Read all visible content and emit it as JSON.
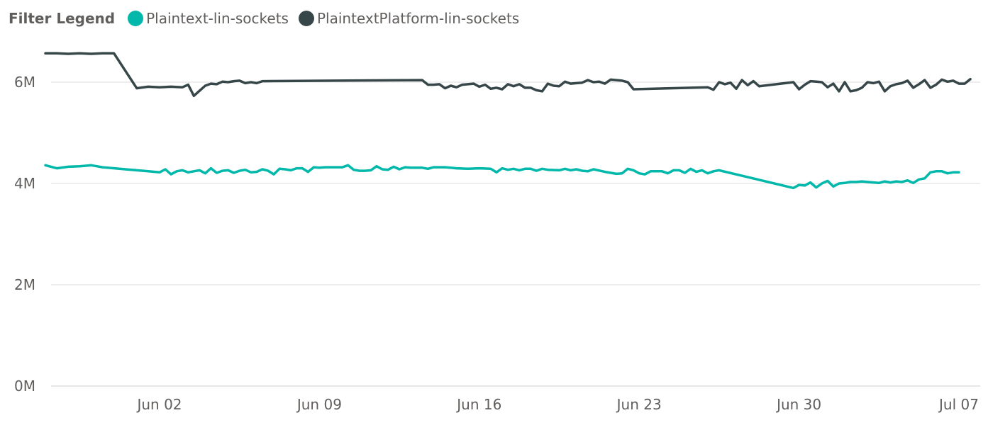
{
  "legend": {
    "title": "Filter Legend",
    "items": [
      {
        "label": "Plaintext-lin-sockets",
        "color": "#01b8aa"
      },
      {
        "label": "PlaintextPlatform-lin-sockets",
        "color": "#374649"
      }
    ]
  },
  "chart_data": {
    "type": "line",
    "title": "",
    "xlabel": "",
    "ylabel": "",
    "ylim": [
      0,
      6000000
    ],
    "xlim": [
      "2019-05-28",
      "2019-07-07"
    ],
    "grid": true,
    "legend_position": "top-left",
    "y_ticks": [
      {
        "value": 0,
        "label": "0M"
      },
      {
        "value": 2000000,
        "label": "2M"
      },
      {
        "value": 4000000,
        "label": "4M"
      },
      {
        "value": 6000000,
        "label": "6M"
      }
    ],
    "x_ticks": [
      {
        "value": "2019-06-02",
        "label": "Jun 02"
      },
      {
        "value": "2019-06-09",
        "label": "Jun 09"
      },
      {
        "value": "2019-06-16",
        "label": "Jun 16"
      },
      {
        "value": "2019-06-23",
        "label": "Jun 23"
      },
      {
        "value": "2019-06-30",
        "label": "Jun 30"
      },
      {
        "value": "2019-07-07",
        "label": "Jul 07"
      }
    ],
    "series": [
      {
        "name": "Plaintext-lin-sockets",
        "color": "#01b8aa",
        "points": [
          [
            "2019-05-28T00:00",
            4360000.0
          ],
          [
            "2019-05-28T12:00",
            4300000.0
          ],
          [
            "2019-05-29T00:00",
            4330000.0
          ],
          [
            "2019-05-29T12:00",
            4340000.0
          ],
          [
            "2019-05-30T00:00",
            4360000.0
          ],
          [
            "2019-05-30T06:00",
            4340000.0
          ],
          [
            "2019-05-30T12:00",
            4320000.0
          ],
          [
            "2019-05-31T12:00",
            4280000.0
          ],
          [
            "2019-06-01T12:00",
            4240000.0
          ],
          [
            "2019-06-02T00:00",
            4220000.0
          ],
          [
            "2019-06-02T06:00",
            4280000.0
          ],
          [
            "2019-06-02T12:00",
            4180000.0
          ],
          [
            "2019-06-02T18:00",
            4240000.0
          ],
          [
            "2019-06-03T00:00",
            4260000.0
          ],
          [
            "2019-06-03T06:00",
            4220000.0
          ],
          [
            "2019-06-03T12:00",
            4240000.0
          ],
          [
            "2019-06-03T18:00",
            4260000.0
          ],
          [
            "2019-06-04T00:00",
            4200000.0
          ],
          [
            "2019-06-04T06:00",
            4300000.0
          ],
          [
            "2019-06-04T12:00",
            4210000.0
          ],
          [
            "2019-06-04T18:00",
            4250000.0
          ],
          [
            "2019-06-05T00:00",
            4260000.0
          ],
          [
            "2019-06-05T06:00",
            4210000.0
          ],
          [
            "2019-06-05T12:00",
            4250000.0
          ],
          [
            "2019-06-05T18:00",
            4270000.0
          ],
          [
            "2019-06-06T00:00",
            4220000.0
          ],
          [
            "2019-06-06T06:00",
            4230000.0
          ],
          [
            "2019-06-06T12:00",
            4280000.0
          ],
          [
            "2019-06-06T18:00",
            4250000.0
          ],
          [
            "2019-06-07T00:00",
            4180000.0
          ],
          [
            "2019-06-07T06:00",
            4290000.0
          ],
          [
            "2019-06-07T12:00",
            4280000.0
          ],
          [
            "2019-06-07T18:00",
            4260000.0
          ],
          [
            "2019-06-08T00:00",
            4300000.0
          ],
          [
            "2019-06-08T06:00",
            4300000.0
          ],
          [
            "2019-06-08T12:00",
            4230000.0
          ],
          [
            "2019-06-08T18:00",
            4320000.0
          ],
          [
            "2019-06-09T00:00",
            4310000.0
          ],
          [
            "2019-06-09T06:00",
            4320000.0
          ],
          [
            "2019-06-09T12:00",
            4320000.0
          ],
          [
            "2019-06-10T00:00",
            4320000.0
          ],
          [
            "2019-06-10T06:00",
            4360000.0
          ],
          [
            "2019-06-10T12:00",
            4270000.0
          ],
          [
            "2019-06-10T18:00",
            4250000.0
          ],
          [
            "2019-06-11T00:00",
            4250000.0
          ],
          [
            "2019-06-11T06:00",
            4260000.0
          ],
          [
            "2019-06-11T12:00",
            4340000.0
          ],
          [
            "2019-06-11T18:00",
            4280000.0
          ],
          [
            "2019-06-12T00:00",
            4270000.0
          ],
          [
            "2019-06-12T06:00",
            4330000.0
          ],
          [
            "2019-06-12T12:00",
            4280000.0
          ],
          [
            "2019-06-12T18:00",
            4320000.0
          ],
          [
            "2019-06-13T00:00",
            4310000.0
          ],
          [
            "2019-06-13T12:00",
            4310000.0
          ],
          [
            "2019-06-13T18:00",
            4290000.0
          ],
          [
            "2019-06-14T00:00",
            4320000.0
          ],
          [
            "2019-06-14T12:00",
            4320000.0
          ],
          [
            "2019-06-15T00:00",
            4300000.0
          ],
          [
            "2019-06-15T12:00",
            4290000.0
          ],
          [
            "2019-06-16T00:00",
            4300000.0
          ],
          [
            "2019-06-16T12:00",
            4290000.0
          ],
          [
            "2019-06-16T18:00",
            4220000.0
          ],
          [
            "2019-06-17T00:00",
            4300000.0
          ],
          [
            "2019-06-17T06:00",
            4270000.0
          ],
          [
            "2019-06-17T12:00",
            4290000.0
          ],
          [
            "2019-06-17T18:00",
            4260000.0
          ],
          [
            "2019-06-18T00:00",
            4290000.0
          ],
          [
            "2019-06-18T06:00",
            4290000.0
          ],
          [
            "2019-06-18T12:00",
            4250000.0
          ],
          [
            "2019-06-18T18:00",
            4290000.0
          ],
          [
            "2019-06-19T00:00",
            4270000.0
          ],
          [
            "2019-06-19T12:00",
            4260000.0
          ],
          [
            "2019-06-19T18:00",
            4290000.0
          ],
          [
            "2019-06-20T00:00",
            4260000.0
          ],
          [
            "2019-06-20T06:00",
            4280000.0
          ],
          [
            "2019-06-20T12:00",
            4250000.0
          ],
          [
            "2019-06-20T18:00",
            4240000.0
          ],
          [
            "2019-06-21T00:00",
            4280000.0
          ],
          [
            "2019-06-21T12:00",
            4230000.0
          ],
          [
            "2019-06-22T00:00",
            4190000.0
          ],
          [
            "2019-06-22T06:00",
            4200000.0
          ],
          [
            "2019-06-22T12:00",
            4290000.0
          ],
          [
            "2019-06-22T18:00",
            4260000.0
          ],
          [
            "2019-06-23T00:00",
            4200000.0
          ],
          [
            "2019-06-23T06:00",
            4180000.0
          ],
          [
            "2019-06-23T12:00",
            4240000.0
          ],
          [
            "2019-06-24T00:00",
            4240000.0
          ],
          [
            "2019-06-24T06:00",
            4200000.0
          ],
          [
            "2019-06-24T12:00",
            4260000.0
          ],
          [
            "2019-06-24T18:00",
            4260000.0
          ],
          [
            "2019-06-25T00:00",
            4210000.0
          ],
          [
            "2019-06-25T06:00",
            4290000.0
          ],
          [
            "2019-06-25T12:00",
            4230000.0
          ],
          [
            "2019-06-25T18:00",
            4260000.0
          ],
          [
            "2019-06-26T00:00",
            4200000.0
          ],
          [
            "2019-06-26T06:00",
            4240000.0
          ],
          [
            "2019-06-26T12:00",
            4260000.0
          ],
          [
            "2019-06-29T18:00",
            3910000.0
          ],
          [
            "2019-06-30T00:00",
            3970000.0
          ],
          [
            "2019-06-30T06:00",
            3960000.0
          ],
          [
            "2019-06-30T12:00",
            4020000.0
          ],
          [
            "2019-06-30T18:00",
            3920000.0
          ],
          [
            "2019-07-01T00:00",
            4000000.0
          ],
          [
            "2019-07-01T06:00",
            4050000.0
          ],
          [
            "2019-07-01T12:00",
            3940000.0
          ],
          [
            "2019-07-01T18:00",
            4000000.0
          ],
          [
            "2019-07-02T00:00",
            4010000.0
          ],
          [
            "2019-07-02T06:00",
            4030000.0
          ],
          [
            "2019-07-02T12:00",
            4030000.0
          ],
          [
            "2019-07-02T18:00",
            4040000.0
          ],
          [
            "2019-07-03T00:00",
            4030000.0
          ],
          [
            "2019-07-03T06:00",
            4020000.0
          ],
          [
            "2019-07-03T12:00",
            4010000.0
          ],
          [
            "2019-07-03T18:00",
            4040000.0
          ],
          [
            "2019-07-04T00:00",
            4020000.0
          ],
          [
            "2019-07-04T06:00",
            4040000.0
          ],
          [
            "2019-07-04T12:00",
            4030000.0
          ],
          [
            "2019-07-04T18:00",
            4060000.0
          ],
          [
            "2019-07-05T00:00",
            4010000.0
          ],
          [
            "2019-07-05T06:00",
            4080000.0
          ],
          [
            "2019-07-05T12:00",
            4100000.0
          ],
          [
            "2019-07-05T18:00",
            4220000.0
          ],
          [
            "2019-07-06T00:00",
            4240000.0
          ],
          [
            "2019-07-06T06:00",
            4240000.0
          ],
          [
            "2019-07-06T12:00",
            4200000.0
          ],
          [
            "2019-07-06T18:00",
            4220000.0
          ],
          [
            "2019-07-07T00:00",
            4220000.0
          ]
        ]
      },
      {
        "name": "PlaintextPlatform-lin-sockets",
        "color": "#374649",
        "points": [
          [
            "2019-05-28T00:00",
            6570000.0
          ],
          [
            "2019-05-28T12:00",
            6570000.0
          ],
          [
            "2019-05-29T00:00",
            6560000.0
          ],
          [
            "2019-05-29T12:00",
            6570000.0
          ],
          [
            "2019-05-30T00:00",
            6560000.0
          ],
          [
            "2019-05-30T12:00",
            6570000.0
          ],
          [
            "2019-05-31T00:00",
            6570000.0
          ],
          [
            "2019-06-01T00:00",
            5880000.0
          ],
          [
            "2019-06-01T12:00",
            5910000.0
          ],
          [
            "2019-06-02T00:00",
            5900000.0
          ],
          [
            "2019-06-02T12:00",
            5910000.0
          ],
          [
            "2019-06-03T00:00",
            5900000.0
          ],
          [
            "2019-06-03T06:00",
            5950000.0
          ],
          [
            "2019-06-03T12:00",
            5730000.0
          ],
          [
            "2019-06-04T00:00",
            5930000.0
          ],
          [
            "2019-06-04T06:00",
            5970000.0
          ],
          [
            "2019-06-04T12:00",
            5960000.0
          ],
          [
            "2019-06-04T18:00",
            6010000.0
          ],
          [
            "2019-06-05T00:00",
            6000000.0
          ],
          [
            "2019-06-05T06:00",
            6020000.0
          ],
          [
            "2019-06-05T12:00",
            6030000.0
          ],
          [
            "2019-06-05T18:00",
            5980000.0
          ],
          [
            "2019-06-06T00:00",
            6000000.0
          ],
          [
            "2019-06-06T06:00",
            5980000.0
          ],
          [
            "2019-06-06T12:00",
            6020000.0
          ],
          [
            "2019-06-13T12:00",
            6040000.0
          ],
          [
            "2019-06-13T18:00",
            5950000.0
          ],
          [
            "2019-06-14T00:00",
            5950000.0
          ],
          [
            "2019-06-14T06:00",
            5960000.0
          ],
          [
            "2019-06-14T12:00",
            5880000.0
          ],
          [
            "2019-06-14T18:00",
            5930000.0
          ],
          [
            "2019-06-15T00:00",
            5900000.0
          ],
          [
            "2019-06-15T06:00",
            5950000.0
          ],
          [
            "2019-06-15T12:00",
            5960000.0
          ],
          [
            "2019-06-15T18:00",
            5970000.0
          ],
          [
            "2019-06-16T00:00",
            5910000.0
          ],
          [
            "2019-06-16T06:00",
            5950000.0
          ],
          [
            "2019-06-16T12:00",
            5870000.0
          ],
          [
            "2019-06-16T18:00",
            5890000.0
          ],
          [
            "2019-06-17T00:00",
            5860000.0
          ],
          [
            "2019-06-17T06:00",
            5960000.0
          ],
          [
            "2019-06-17T12:00",
            5920000.0
          ],
          [
            "2019-06-17T18:00",
            5960000.0
          ],
          [
            "2019-06-18T00:00",
            5890000.0
          ],
          [
            "2019-06-18T06:00",
            5890000.0
          ],
          [
            "2019-06-18T12:00",
            5840000.0
          ],
          [
            "2019-06-18T18:00",
            5820000.0
          ],
          [
            "2019-06-19T00:00",
            5970000.0
          ],
          [
            "2019-06-19T06:00",
            5930000.0
          ],
          [
            "2019-06-19T12:00",
            5920000.0
          ],
          [
            "2019-06-19T18:00",
            6010000.0
          ],
          [
            "2019-06-20T00:00",
            5970000.0
          ],
          [
            "2019-06-20T06:00",
            5980000.0
          ],
          [
            "2019-06-20T12:00",
            5990000.0
          ],
          [
            "2019-06-20T18:00",
            6040000.0
          ],
          [
            "2019-06-21T00:00",
            6000000.0
          ],
          [
            "2019-06-21T06:00",
            6010000.0
          ],
          [
            "2019-06-21T12:00",
            5970000.0
          ],
          [
            "2019-06-21T18:00",
            6050000.0
          ],
          [
            "2019-06-22T00:00",
            6040000.0
          ],
          [
            "2019-06-22T06:00",
            6030000.0
          ],
          [
            "2019-06-22T12:00",
            6000000.0
          ],
          [
            "2019-06-22T18:00",
            5860000.0
          ],
          [
            "2019-06-26T00:00",
            5900000.0
          ],
          [
            "2019-06-26T06:00",
            5850000.0
          ],
          [
            "2019-06-26T12:00",
            6000000.0
          ],
          [
            "2019-06-26T18:00",
            5960000.0
          ],
          [
            "2019-06-27T00:00",
            5990000.0
          ],
          [
            "2019-06-27T06:00",
            5870000.0
          ],
          [
            "2019-06-27T12:00",
            6040000.0
          ],
          [
            "2019-06-27T18:00",
            5940000.0
          ],
          [
            "2019-06-28T00:00",
            6020000.0
          ],
          [
            "2019-06-28T06:00",
            5920000.0
          ],
          [
            "2019-06-29T18:00",
            6000000.0
          ],
          [
            "2019-06-30T00:00",
            5860000.0
          ],
          [
            "2019-06-30T06:00",
            5950000.0
          ],
          [
            "2019-06-30T12:00",
            6020000.0
          ],
          [
            "2019-06-30T18:00",
            6010000.0
          ],
          [
            "2019-07-01T00:00",
            6000000.0
          ],
          [
            "2019-07-01T06:00",
            5900000.0
          ],
          [
            "2019-07-01T12:00",
            5970000.0
          ],
          [
            "2019-07-01T18:00",
            5820000.0
          ],
          [
            "2019-07-02T00:00",
            6000000.0
          ],
          [
            "2019-07-02T06:00",
            5820000.0
          ],
          [
            "2019-07-02T12:00",
            5840000.0
          ],
          [
            "2019-07-02T18:00",
            5890000.0
          ],
          [
            "2019-07-03T00:00",
            6000000.0
          ],
          [
            "2019-07-03T06:00",
            5980000.0
          ],
          [
            "2019-07-03T12:00",
            6010000.0
          ],
          [
            "2019-07-03T18:00",
            5820000.0
          ],
          [
            "2019-07-04T00:00",
            5920000.0
          ],
          [
            "2019-07-04T06:00",
            5960000.0
          ],
          [
            "2019-07-04T12:00",
            5980000.0
          ],
          [
            "2019-07-04T18:00",
            6030000.0
          ],
          [
            "2019-07-05T00:00",
            5890000.0
          ],
          [
            "2019-07-05T06:00",
            5960000.0
          ],
          [
            "2019-07-05T12:00",
            6040000.0
          ],
          [
            "2019-07-05T18:00",
            5890000.0
          ],
          [
            "2019-07-06T00:00",
            5950000.0
          ],
          [
            "2019-07-06T06:00",
            6050000.0
          ],
          [
            "2019-07-06T12:00",
            6010000.0
          ],
          [
            "2019-07-06T18:00",
            6030000.0
          ],
          [
            "2019-07-07T00:00",
            5970000.0
          ],
          [
            "2019-07-07T06:00",
            5970000.0
          ],
          [
            "2019-07-07T12:00",
            6060000.0
          ]
        ]
      }
    ]
  }
}
